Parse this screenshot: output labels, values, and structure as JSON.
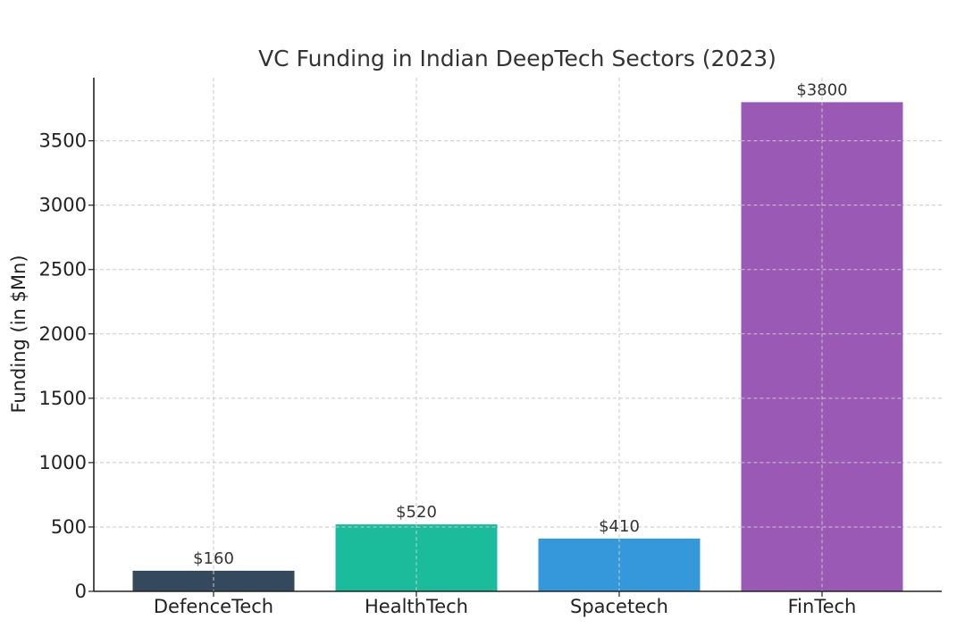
{
  "chart_data": {
    "type": "bar",
    "title": "VC Funding in Indian DeepTech Sectors (2023)",
    "xlabel": "",
    "ylabel": "Funding (in $Mn)",
    "categories": [
      "DefenceTech",
      "HealthTech",
      "Spacetech",
      "FinTech"
    ],
    "values": [
      160,
      520,
      410,
      3800
    ],
    "data_labels": [
      "$160",
      "$520",
      "$410",
      "$3800"
    ],
    "colors": [
      "#34495e",
      "#1abc9c",
      "#3498db",
      "#9b59b6"
    ],
    "ylim": [
      0,
      3990
    ],
    "yticks": [
      0,
      500,
      1000,
      1500,
      2000,
      2500,
      3000,
      3500
    ],
    "ytick_labels": [
      "0",
      "500",
      "1000",
      "1500",
      "2000",
      "2500",
      "3000",
      "3500"
    ],
    "grid": true
  }
}
